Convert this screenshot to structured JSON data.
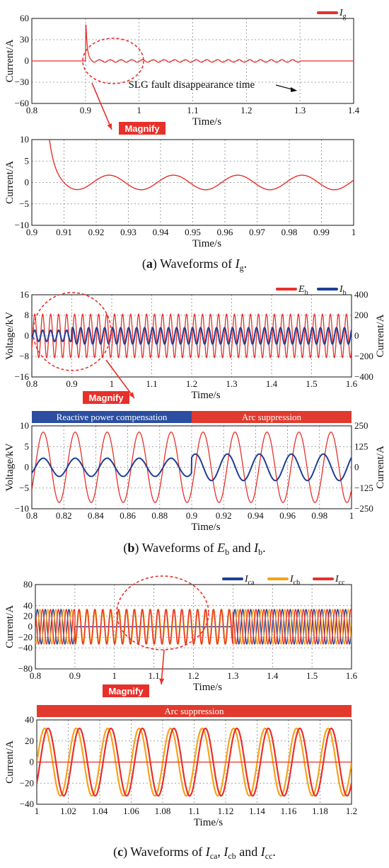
{
  "colors": {
    "red": "#e8302a",
    "blue": "#1f3f94",
    "orange": "#f5a31a",
    "grid": "#888888",
    "banner_blue": "#2b4ea0",
    "banner_red": "#e23a2e"
  },
  "magnify_label": "Magnify",
  "captions": [
    {
      "open": "(",
      "bold": "a",
      "text": ") Waveforms of ",
      "sym": "I",
      "sub": "g",
      "end": "."
    },
    {
      "open": "(",
      "bold": "b",
      "text": ") Waveforms of ",
      "sym": "E",
      "sub": "b",
      "mid": " and ",
      "sym2": "I",
      "sub2": "b",
      "end": "."
    },
    {
      "open": "(",
      "bold": "c",
      "text": ") Waveforms of ",
      "sym": "I",
      "sub": "ca",
      "mid": ", ",
      "sym2": "I",
      "sub2": "cb",
      "mid2": " and ",
      "sym3": "I",
      "sub3": "cc",
      "end": "."
    }
  ],
  "chart_data": [
    {
      "id": "a1",
      "type": "line",
      "xlabel": "Time/s",
      "ylabel": "Current/A",
      "xlim": [
        0.8,
        1.4
      ],
      "ylim": [
        -60,
        60
      ],
      "xticks": [
        "0.8",
        "0.9",
        "1",
        "1.1",
        "1.2",
        "1.3",
        "1.4"
      ],
      "yticks": [
        "60",
        "30",
        "0",
        "−30",
        "−60"
      ],
      "grid": true,
      "legend_position": "top-right",
      "annotation": "SLG fault disappearance time",
      "series": [
        {
          "name": "I",
          "sub": "g",
          "color": "#e8302a",
          "fault_time": 0.9,
          "spike_peak": 57,
          "oscillation_amplitude": 1.8,
          "oscillation_frequency_hz": 50,
          "clear_time": 1.3
        }
      ]
    },
    {
      "id": "a2",
      "type": "line",
      "xlabel": "Time/s",
      "ylabel": "Current/A",
      "xlim": [
        0.9,
        1.0
      ],
      "ylim": [
        -10,
        10
      ],
      "xticks": [
        "0.9",
        "0.91",
        "0.92",
        "0.93",
        "0.94",
        "0.95",
        "0.96",
        "0.97",
        "0.98",
        "0.99",
        "1"
      ],
      "yticks": [
        "10",
        "5",
        "0",
        "−5",
        "−10"
      ],
      "grid": true,
      "series": [
        {
          "name": "I",
          "sub": "g",
          "color": "#e8302a",
          "amplitude": 1.7,
          "frequency_hz": 50,
          "peaks_at": [
            0.924,
            0.944,
            0.964,
            0.984
          ]
        }
      ]
    },
    {
      "id": "b1",
      "type": "line",
      "xlabel": "Time/s",
      "ylabel": "Voltage/kV",
      "ylabel_right": "Current/A",
      "xlim": [
        0.8,
        1.6
      ],
      "ylim": [
        -16,
        16
      ],
      "ylim_right": [
        -400,
        400
      ],
      "xticks": [
        "0.8",
        "0.9",
        "1",
        "1.1",
        "1.2",
        "1.3",
        "1.4",
        "1.5",
        "1.6"
      ],
      "yticks": [
        "16",
        "8",
        "0",
        "−8",
        "−16"
      ],
      "yticks_right": [
        "400",
        "200",
        "0",
        "−200",
        "−400"
      ],
      "grid": true,
      "legend_position": "top-right",
      "series": [
        {
          "name": "E",
          "sub": "b",
          "color": "#e8302a",
          "axis": "left",
          "amplitude": 8.5,
          "frequency_hz": 50
        },
        {
          "name": "I",
          "sub": "b",
          "color": "#1f3f94",
          "axis": "right",
          "amplitude_before": 55,
          "amplitude_after": 80,
          "switch_time": 0.9,
          "frequency_hz": 50
        }
      ]
    },
    {
      "id": "b2",
      "type": "line",
      "xlabel": "Time/s",
      "ylabel": "Voltage/kV",
      "ylabel_right": "Current/A",
      "xlim": [
        0.8,
        1.0
      ],
      "ylim": [
        -10,
        10
      ],
      "ylim_right": [
        -250,
        250
      ],
      "xticks": [
        "0.8",
        "0.82",
        "0.84",
        "0.86",
        "0.88",
        "0.9",
        "0.92",
        "0.94",
        "0.96",
        "0.98",
        "1"
      ],
      "yticks": [
        "10",
        "5",
        "0",
        "−5",
        "−10"
      ],
      "yticks_right": [
        "250",
        "125",
        "0",
        "−125",
        "−250"
      ],
      "grid": true,
      "banners": [
        {
          "label": "Reactive power compensation",
          "from": 0.8,
          "to": 0.9,
          "color": "#2b4ea0"
        },
        {
          "label": "Arc suppression",
          "from": 0.9,
          "to": 1.0,
          "color": "#e23a2e"
        }
      ],
      "series": [
        {
          "name": "E",
          "sub": "b",
          "color": "#e8302a",
          "axis": "left",
          "amplitude": 8.5,
          "frequency_hz": 50
        },
        {
          "name": "I",
          "sub": "b",
          "color": "#1f3f94",
          "axis": "right",
          "amplitude_before": 55,
          "amplitude_after": 80,
          "switch_time": 0.9,
          "frequency_hz": 50
        }
      ]
    },
    {
      "id": "c1",
      "type": "line",
      "xlabel": "Time/s",
      "ylabel": "Current/A",
      "xlim": [
        0.8,
        1.6
      ],
      "ylim": [
        -80,
        80
      ],
      "xticks": [
        "0.8",
        "0.9",
        "1",
        "1.1",
        "1.2",
        "1.3",
        "1.4",
        "1.5",
        "1.6"
      ],
      "yticks": [
        "80",
        "40",
        "20",
        "0",
        "−20",
        "−40",
        "−80"
      ],
      "grid": true,
      "legend_position": "top-right",
      "series": [
        {
          "name": "I",
          "sub": "ca",
          "color": "#1f3f94",
          "amplitude": 33,
          "frequency_hz": 50,
          "off_from": 0.9,
          "off_to": 1.3
        },
        {
          "name": "I",
          "sub": "cb",
          "color": "#f5a31a",
          "amplitude": 33,
          "frequency_hz": 50
        },
        {
          "name": "I",
          "sub": "cc",
          "color": "#e8302a",
          "amplitude": 33,
          "frequency_hz": 50
        }
      ]
    },
    {
      "id": "c2",
      "type": "line",
      "xlabel": "Time/s",
      "ylabel": "Current/A",
      "xlim": [
        1.0,
        1.2
      ],
      "ylim": [
        -40,
        40
      ],
      "xticks": [
        "1",
        "1.02",
        "1.04",
        "1.06",
        "1.08",
        "1.1",
        "1.12",
        "1.14",
        "1.16",
        "1.18",
        "1.2"
      ],
      "yticks": [
        "40",
        "20",
        "0",
        "−20",
        "−40"
      ],
      "grid": true,
      "banners": [
        {
          "label": "Arc suppression",
          "from": 1.0,
          "to": 1.2,
          "color": "#e23a2e"
        }
      ],
      "series": [
        {
          "name": "I",
          "sub": "cb",
          "color": "#f5a31a",
          "amplitude": 32,
          "frequency_hz": 50
        },
        {
          "name": "I",
          "sub": "cc",
          "color": "#e8302a",
          "amplitude": 32,
          "frequency_hz": 50
        },
        {
          "name": "I",
          "sub": "ca",
          "color": "#e8302a",
          "amplitude": 0,
          "frequency_hz": 50
        }
      ]
    }
  ]
}
